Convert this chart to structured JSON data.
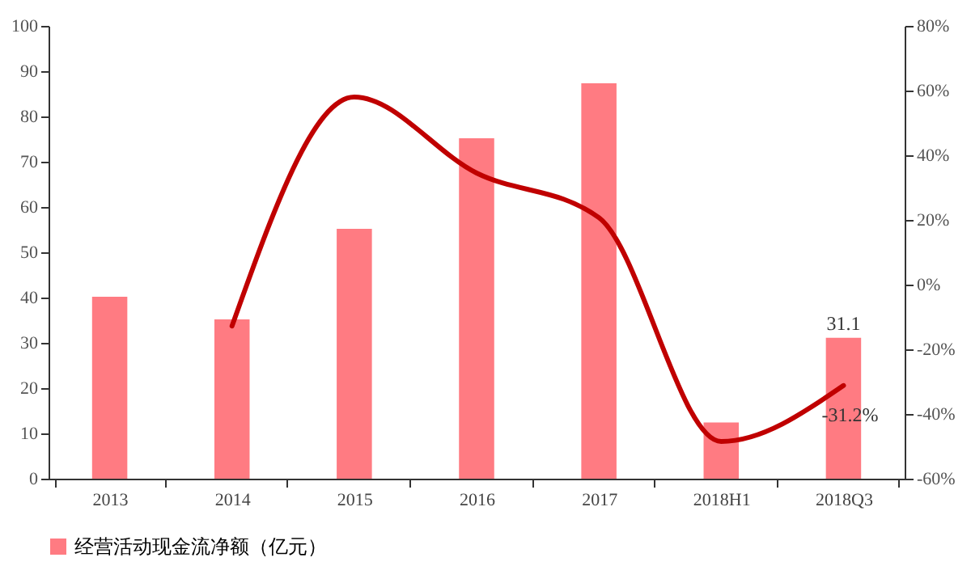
{
  "chart_data": {
    "type": "bar",
    "categories": [
      "2013",
      "2014",
      "2015",
      "2016",
      "2017",
      "2018H1",
      "2018Q3"
    ],
    "series": [
      {
        "name": "经营活动现金流净额（亿元）",
        "color": "#ff7b82",
        "values": [
          40.2,
          35.2,
          55.2,
          75.2,
          87.3,
          12.4,
          31.1
        ],
        "value_labels": [
          null,
          null,
          null,
          null,
          null,
          null,
          "31.1"
        ]
      },
      {
        "type": "line",
        "axis": "y2",
        "color": "#c00000",
        "values": [
          null,
          -12.8,
          58,
          34.5,
          20.7,
          -48.5,
          -31.2
        ],
        "value_labels": [
          null,
          null,
          null,
          null,
          null,
          null,
          "-31.2%"
        ]
      }
    ],
    "ylim": [
      0,
      100
    ],
    "yticks": [
      0,
      10,
      20,
      30,
      40,
      50,
      60,
      70,
      80,
      90,
      100
    ],
    "y2lim": [
      -60,
      80
    ],
    "y2ticks": [
      {
        "value": -60,
        "label": "-60%"
      },
      {
        "value": -40,
        "label": "-40%"
      },
      {
        "value": -20,
        "label": "-20%"
      },
      {
        "value": 0,
        "label": "0%"
      },
      {
        "value": 20,
        "label": "20%"
      },
      {
        "value": 40,
        "label": "40%"
      },
      {
        "value": 60,
        "label": "60%"
      },
      {
        "value": 80,
        "label": "80%"
      }
    ],
    "grid": false,
    "legend": "bottom",
    "line_style": "solid"
  }
}
